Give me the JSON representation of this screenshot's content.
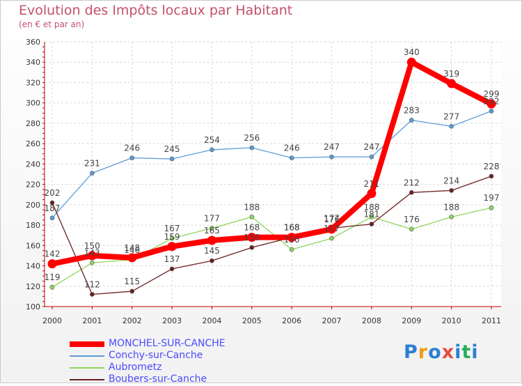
{
  "title": "Evolution des Impôts locaux par Habitant",
  "subtitle": "(en € et par an)",
  "logo_text": "Proxiti",
  "chart_data": {
    "type": "line",
    "title": "Evolution des Impôts locaux par Habitant",
    "subtitle": "(en € et par an)",
    "xlabel": "",
    "ylabel": "",
    "x": [
      "2000",
      "2001",
      "2002",
      "2003",
      "2004",
      "2005",
      "2006",
      "2007",
      "2008",
      "2009",
      "2010",
      "2011"
    ],
    "ylim": [
      100,
      360
    ],
    "yticks": [
      100,
      120,
      140,
      160,
      180,
      200,
      220,
      240,
      260,
      280,
      300,
      320,
      340,
      360
    ],
    "grid": true,
    "legend_position": "bottom-left",
    "series": [
      {
        "name": "Conchy-sur-Canche",
        "color": "#5b9bd5",
        "values": [
          187,
          231,
          246,
          245,
          254,
          256,
          246,
          247,
          247,
          283,
          277,
          292
        ],
        "labels": [
          "187",
          "231",
          "246",
          "245",
          "254",
          "256",
          "246",
          "247",
          "247",
          "283",
          "277",
          "292"
        ]
      },
      {
        "name": "Aubrometz",
        "color": "#8ed65c",
        "values": [
          119,
          143,
          146,
          167,
          177,
          188,
          156,
          167,
          188,
          176,
          188,
          197
        ],
        "labels": [
          "119",
          "143",
          "146",
          "167",
          "177",
          "188",
          "156",
          "167",
          "188",
          "176",
          "188",
          "197"
        ]
      },
      {
        "name": "Boubers-sur-Canche",
        "color": "#6b1f1f",
        "values": [
          202,
          112,
          115,
          137,
          145,
          158,
          168,
          177,
          181,
          212,
          214,
          228
        ],
        "labels": [
          "202",
          "112",
          "115",
          "137",
          "145",
          "158",
          "168",
          "177",
          "181",
          "212",
          "214",
          "228"
        ]
      },
      {
        "name": "MONCHEL-SUR-CANCHE",
        "color": "#ff0000",
        "values": [
          142,
          150,
          148,
          159,
          165,
          168,
          168,
          176,
          211,
          340,
          319,
          299
        ],
        "labels": [
          "142",
          "150",
          "148",
          "159",
          "165",
          "168",
          "168",
          "176",
          "211",
          "340",
          "319",
          "299"
        ]
      }
    ],
    "legend": [
      {
        "name": "MONCHEL-SUR-CANCHE",
        "color": "#ff0000",
        "text_color": "#4a4aff",
        "thick": true
      },
      {
        "name": "Conchy-sur-Canche",
        "color": "#5b9bd5",
        "text_color": "#4a4aff",
        "thick": false
      },
      {
        "name": "Aubrometz",
        "color": "#8ed65c",
        "text_color": "#4a4aff",
        "thick": false
      },
      {
        "name": "Boubers-sur-Canche",
        "color": "#6b1f1f",
        "text_color": "#4a4aff",
        "thick": false
      }
    ]
  }
}
